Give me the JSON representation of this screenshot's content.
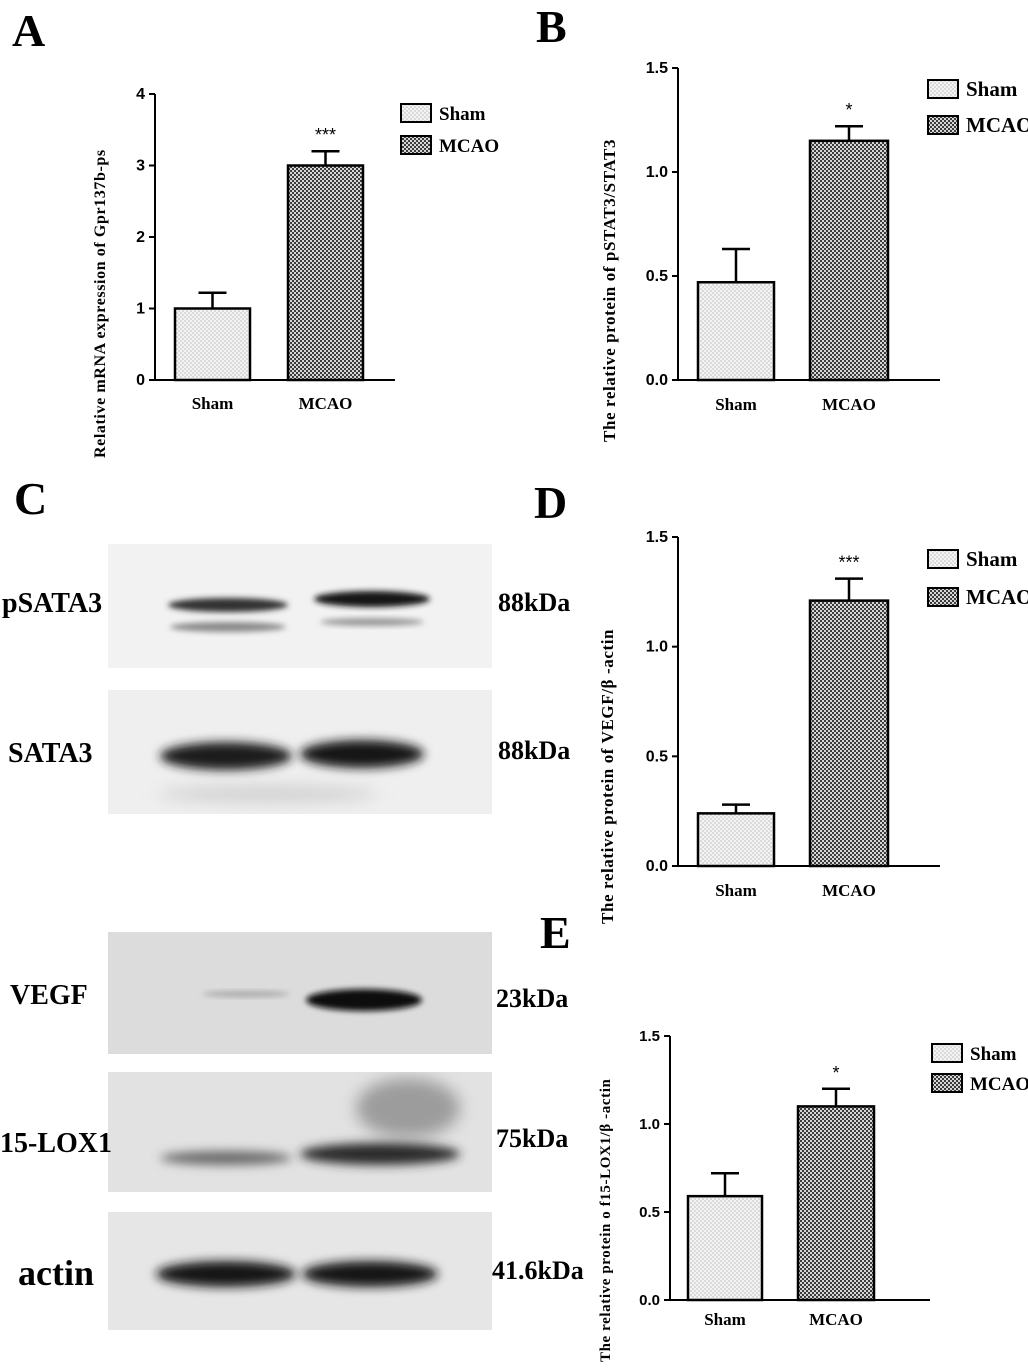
{
  "panels": {
    "A": "A",
    "B": "B",
    "C": "C",
    "D": "D",
    "E": "E"
  },
  "legend": {
    "sham": "Sham",
    "mcao": "MCAO"
  },
  "colors": {
    "sham_fill": "#eeeeee",
    "mcao_fill": "#8a8a8a",
    "axis": "#000000"
  },
  "chart_data": [
    {
      "id": "A",
      "type": "bar",
      "categories": [
        "Sham",
        "MCAO"
      ],
      "values": [
        1.0,
        3.0
      ],
      "errors": [
        0.22,
        0.2
      ],
      "significance": [
        "",
        "***"
      ],
      "ylabel": "Relative mRNA expression of Gpr137b-ps",
      "ylim": [
        0,
        4
      ],
      "yticks": [
        "0",
        "1",
        "2",
        "3",
        "4"
      ],
      "legend": [
        "Sham",
        "MCAO"
      ],
      "legend_position": "top-right"
    },
    {
      "id": "B",
      "type": "bar",
      "categories": [
        "Sham",
        "MCAO"
      ],
      "values": [
        0.47,
        1.15
      ],
      "errors": [
        0.16,
        0.07
      ],
      "significance": [
        "",
        "*"
      ],
      "ylabel": "The relative protein of pSTAT3/STAT3",
      "ylim": [
        0,
        1.5
      ],
      "yticks": [
        "0.0",
        "0.5",
        "1.0",
        "1.5"
      ],
      "legend": [
        "Sham",
        "MCAO"
      ],
      "legend_position": "top-right"
    },
    {
      "id": "D",
      "type": "bar",
      "categories": [
        "Sham",
        "MCAO"
      ],
      "values": [
        0.24,
        1.21
      ],
      "errors": [
        0.04,
        0.1
      ],
      "significance": [
        "",
        "***"
      ],
      "ylabel": "The relative protein of VEGF/β -actin",
      "ylim": [
        0,
        1.5
      ],
      "yticks": [
        "0.0",
        "0.5",
        "1.0",
        "1.5"
      ],
      "legend": [
        "Sham",
        "MCAO"
      ],
      "legend_position": "top-right"
    },
    {
      "id": "E",
      "type": "bar",
      "categories": [
        "Sham",
        "MCAO"
      ],
      "values": [
        0.59,
        1.1
      ],
      "errors": [
        0.13,
        0.1
      ],
      "significance": [
        "",
        "*"
      ],
      "ylabel": "The relative protein o f15-LOX1/β -actin",
      "ylim": [
        0,
        1.5
      ],
      "yticks": [
        "0.0",
        "0.5",
        "1.0",
        "1.5"
      ],
      "legend": [
        "Sham",
        "MCAO"
      ],
      "legend_position": "top-right"
    }
  ],
  "blots": [
    {
      "label": "pSATA3",
      "kda": "88kDa"
    },
    {
      "label": "SATA3",
      "kda": "88kDa"
    },
    {
      "label": "VEGF",
      "kda": "23kDa"
    },
    {
      "label": "15-LOX1",
      "kda": "75kDa"
    },
    {
      "label": "actin",
      "kda": "41.6kDa"
    }
  ]
}
